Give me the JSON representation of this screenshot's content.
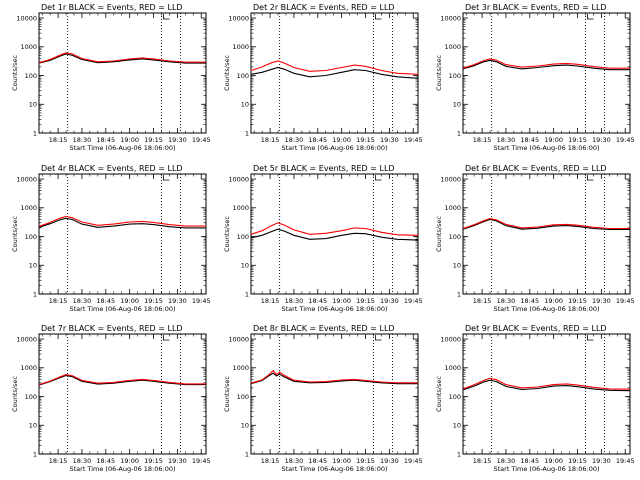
{
  "figure": {
    "common": {
      "type": "line",
      "x_tick_labels": [
        "18:15",
        "18:30",
        "18:45",
        "19:00",
        "19:15",
        "19:30",
        "19:45"
      ],
      "x_ticks_minutes": [
        15,
        30,
        45,
        60,
        75,
        90,
        105
      ],
      "xlim_minutes": [
        3,
        108
      ],
      "y_scale": "log",
      "y_tick_labels": [
        "1",
        "10",
        "100",
        "1000",
        "10000"
      ],
      "y_tick_values": [
        1,
        10,
        100,
        1000,
        10000
      ],
      "ylim": [
        1,
        15000
      ],
      "ylabel": "Counts/sec",
      "vlines_minutes": [
        21,
        80,
        92
      ],
      "colors": {
        "events": "#000000",
        "lld": "#ff0000"
      }
    },
    "panels": [
      {
        "id": "1r",
        "title": "Det 1r BLACK = Events, RED = LLD",
        "xlabel": "Start Time (06-Aug-06 18:06:00)"
      },
      {
        "id": "2r",
        "title": "Det 2r BLACK = Events, RED = LLD",
        "xlabel": "Start Time (06-Aug-06 18:06:00)"
      },
      {
        "id": "3r",
        "title": "Det 3r BLACK = Events, RED = LLD",
        "xlabel": "Start Time (06-Aug-06 18:06:00)"
      },
      {
        "id": "4r",
        "title": "Det 4r BLACK = Events, RED = LLD",
        "xlabel": "Start Time (06-Aug-06 18:06:00)"
      },
      {
        "id": "5r",
        "title": "Det 5r BLACK = Events, RED = LLD",
        "xlabel": "Start Time (06-Aug-06 18:06:00)"
      },
      {
        "id": "6r",
        "title": "Det 6r BLACK = Events, RED = LLD",
        "xlabel": "Start Time (06-Aug-06 18:06:00)"
      },
      {
        "id": "7r",
        "title": "Det 7r BLACK = Events, RED = LLD",
        "xlabel": "Start Time (06-Aug-06 18:06:00)"
      },
      {
        "id": "8r",
        "title": "Det 8r BLACK = Events, RED = LLD",
        "xlabel": "Start Time (06-Aug-06 18:06:00)"
      },
      {
        "id": "9r",
        "title": "Det 9r BLACK = Events, RED = LLD",
        "xlabel": "Start Time (06-Aug-06 18:06:00)"
      }
    ]
  },
  "chart_data": [
    {
      "type": "line",
      "title": "Det 1r BLACK = Events, RED = LLD",
      "xlabel": "Start Time (06-Aug-06 18:06:00)",
      "ylabel": "Counts/sec",
      "y_scale": "log",
      "ylim": [
        1,
        15000
      ],
      "x": [
        3,
        10,
        16,
        20,
        24,
        30,
        40,
        50,
        60,
        68,
        75,
        85,
        95,
        108
      ],
      "series": [
        {
          "name": "Events",
          "color": "#000000",
          "values": [
            270,
            340,
            470,
            560,
            500,
            360,
            280,
            300,
            350,
            380,
            350,
            300,
            270,
            270
          ]
        },
        {
          "name": "LLD",
          "color": "#ff0000",
          "values": [
            280,
            360,
            510,
            620,
            560,
            390,
            300,
            320,
            380,
            410,
            380,
            320,
            290,
            290
          ]
        }
      ]
    },
    {
      "type": "line",
      "title": "Det 2r BLACK = Events, RED = LLD",
      "xlabel": "Start Time (06-Aug-06 18:06:00)",
      "ylabel": "Counts/sec",
      "y_scale": "log",
      "ylim": [
        1,
        15000
      ],
      "x": [
        3,
        10,
        16,
        20,
        24,
        30,
        40,
        50,
        60,
        68,
        75,
        85,
        95,
        108
      ],
      "series": [
        {
          "name": "Events",
          "color": "#000000",
          "values": [
            110,
            130,
            165,
            190,
            165,
            120,
            90,
            100,
            130,
            160,
            150,
            110,
            90,
            80
          ]
        },
        {
          "name": "LLD",
          "color": "#ff0000",
          "values": [
            150,
            200,
            280,
            320,
            270,
            190,
            140,
            150,
            190,
            230,
            210,
            150,
            120,
            110
          ]
        }
      ]
    },
    {
      "type": "line",
      "title": "Det 3r BLACK = Events, RED = LLD",
      "xlabel": "Start Time (06-Aug-06 18:06:00)",
      "ylabel": "Counts/sec",
      "y_scale": "log",
      "ylim": [
        1,
        15000
      ],
      "x": [
        3,
        10,
        16,
        20,
        24,
        30,
        40,
        50,
        60,
        68,
        75,
        85,
        95,
        108
      ],
      "series": [
        {
          "name": "Events",
          "color": "#000000",
          "values": [
            170,
            220,
            300,
            340,
            300,
            210,
            170,
            190,
            220,
            230,
            215,
            180,
            160,
            160
          ]
        },
        {
          "name": "LLD",
          "color": "#ff0000",
          "values": [
            180,
            240,
            330,
            380,
            340,
            240,
            195,
            215,
            250,
            265,
            245,
            205,
            180,
            180
          ]
        }
      ]
    },
    {
      "type": "line",
      "title": "Det 4r BLACK = Events, RED = LLD",
      "xlabel": "Start Time (06-Aug-06 18:06:00)",
      "ylabel": "Counts/sec",
      "y_scale": "log",
      "ylim": [
        1,
        15000
      ],
      "x": [
        3,
        10,
        16,
        20,
        24,
        30,
        40,
        50,
        60,
        68,
        75,
        85,
        95,
        108
      ],
      "series": [
        {
          "name": "Events",
          "color": "#000000",
          "values": [
            210,
            280,
            380,
            430,
            390,
            270,
            210,
            230,
            270,
            280,
            260,
            220,
            200,
            200
          ]
        },
        {
          "name": "LLD",
          "color": "#ff0000",
          "values": [
            225,
            310,
            430,
            500,
            450,
            320,
            245,
            270,
            320,
            335,
            310,
            260,
            230,
            230
          ]
        }
      ]
    },
    {
      "type": "line",
      "title": "Det 5r BLACK = Events, RED = LLD",
      "xlabel": "Start Time (06-Aug-06 18:06:00)",
      "ylabel": "Counts/sec",
      "y_scale": "log",
      "ylim": [
        1,
        15000
      ],
      "x": [
        3,
        10,
        16,
        20,
        24,
        30,
        40,
        50,
        60,
        68,
        75,
        85,
        95,
        108
      ],
      "series": [
        {
          "name": "Events",
          "color": "#000000",
          "values": [
            90,
            110,
            150,
            180,
            155,
            110,
            80,
            85,
            110,
            130,
            125,
            95,
            80,
            75
          ]
        },
        {
          "name": "LLD",
          "color": "#ff0000",
          "values": [
            120,
            160,
            240,
            300,
            250,
            170,
            120,
            130,
            160,
            200,
            190,
            140,
            115,
            110
          ]
        }
      ]
    },
    {
      "type": "line",
      "title": "Det 6r BLACK = Events, RED = LLD",
      "xlabel": "Start Time (06-Aug-06 18:06:00)",
      "ylabel": "Counts/sec",
      "y_scale": "log",
      "ylim": [
        1,
        15000
      ],
      "x": [
        3,
        10,
        16,
        20,
        24,
        30,
        40,
        50,
        60,
        68,
        75,
        85,
        95,
        108
      ],
      "series": [
        {
          "name": "Events",
          "color": "#000000",
          "values": [
            180,
            240,
            330,
            390,
            350,
            240,
            180,
            195,
            230,
            240,
            225,
            190,
            175,
            175
          ]
        },
        {
          "name": "LLD",
          "color": "#ff0000",
          "values": [
            190,
            255,
            355,
            420,
            380,
            265,
            200,
            215,
            255,
            265,
            248,
            210,
            190,
            190
          ]
        }
      ]
    },
    {
      "type": "line",
      "title": "Det 7r BLACK = Events, RED = LLD",
      "xlabel": "Start Time (06-Aug-06 18:06:00)",
      "ylabel": "Counts/sec",
      "y_scale": "log",
      "ylim": [
        1,
        15000
      ],
      "x": [
        3,
        10,
        16,
        20,
        24,
        30,
        40,
        50,
        60,
        68,
        75,
        85,
        95,
        108
      ],
      "series": [
        {
          "name": "Events",
          "color": "#000000",
          "values": [
            250,
            330,
            450,
            540,
            490,
            340,
            270,
            290,
            340,
            370,
            340,
            290,
            260,
            260
          ]
        },
        {
          "name": "LLD",
          "color": "#ff0000",
          "values": [
            260,
            345,
            480,
            580,
            525,
            365,
            290,
            310,
            365,
            395,
            365,
            310,
            275,
            275
          ]
        }
      ]
    },
    {
      "type": "line",
      "title": "Det 8r BLACK = Events, RED = LLD",
      "xlabel": "Start Time (06-Aug-06 18:06:00)",
      "ylabel": "Counts/sec",
      "y_scale": "log",
      "ylim": [
        1,
        15000
      ],
      "x": [
        3,
        10,
        14,
        17,
        19,
        21,
        24,
        30,
        40,
        50,
        60,
        68,
        75,
        85,
        95,
        108
      ],
      "series": [
        {
          "name": "Events",
          "color": "#000000",
          "values": [
            280,
            360,
            520,
            650,
            520,
            600,
            480,
            340,
            300,
            310,
            350,
            370,
            340,
            300,
            280,
            280
          ]
        },
        {
          "name": "LLD",
          "color": "#ff0000",
          "values": [
            290,
            380,
            560,
            800,
            580,
            700,
            540,
            370,
            320,
            330,
            375,
            395,
            365,
            320,
            300,
            300
          ]
        }
      ]
    },
    {
      "type": "line",
      "title": "Det 9r BLACK = Events, RED = LLD",
      "xlabel": "Start Time (06-Aug-06 18:06:00)",
      "ylabel": "Counts/sec",
      "y_scale": "log",
      "ylim": [
        1,
        15000
      ],
      "x": [
        3,
        10,
        16,
        20,
        24,
        30,
        40,
        50,
        60,
        68,
        75,
        85,
        95,
        108
      ],
      "series": [
        {
          "name": "Events",
          "color": "#000000",
          "values": [
            170,
            230,
            320,
            370,
            330,
            225,
            175,
            190,
            230,
            240,
            220,
            185,
            165,
            160
          ]
        },
        {
          "name": "LLD",
          "color": "#ff0000",
          "values": [
            185,
            255,
            360,
            430,
            385,
            260,
            200,
            215,
            260,
            275,
            250,
            210,
            185,
            180
          ]
        }
      ]
    }
  ]
}
